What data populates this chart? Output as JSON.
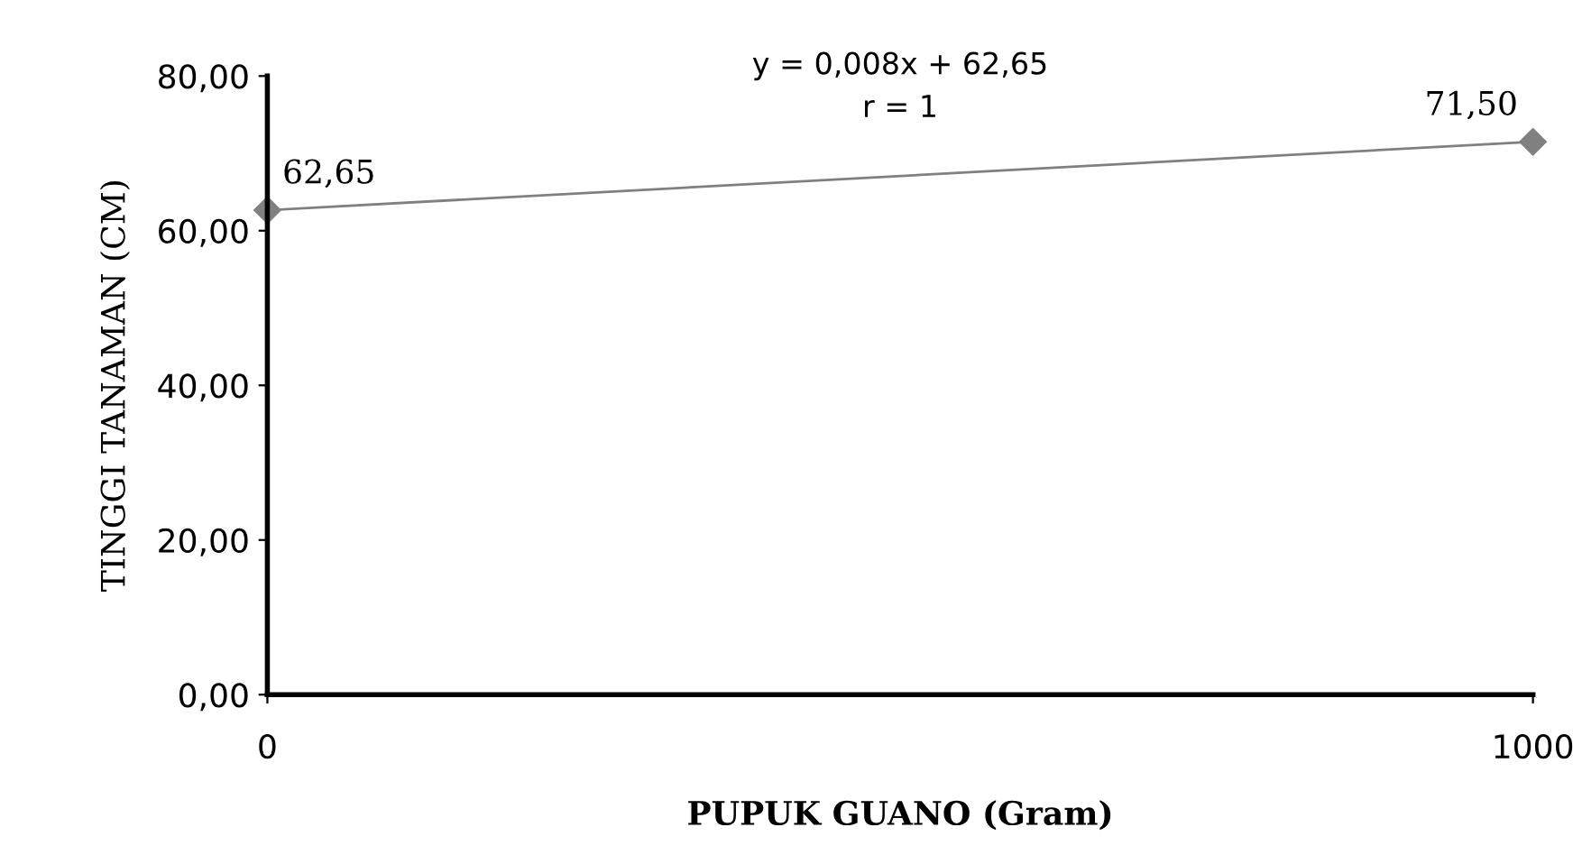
{
  "chart_data": {
    "type": "line",
    "xlabel": "PUPUK GUANO (Gram)",
    "ylabel": "TINGGI TANAMAN (CM)",
    "x": [
      0,
      1000
    ],
    "series": [
      {
        "color": "#808080",
        "values": [
          62.65,
          71.5
        ],
        "value_labels": [
          "62,65",
          "71,50"
        ]
      }
    ],
    "xlim": [
      0,
      1000
    ],
    "xticks": [
      0,
      1000
    ],
    "ylim": [
      0,
      80
    ],
    "yticks": [
      {
        "value": 0,
        "label": "0,00"
      },
      {
        "value": 20,
        "label": "20,00"
      },
      {
        "value": 40,
        "label": "40,00"
      },
      {
        "value": 60,
        "label": "60,00"
      },
      {
        "value": 80,
        "label": "80,00"
      }
    ],
    "annotations": [
      "y = 0,008x + 62,65\nr = 1"
    ],
    "marker": "diamond",
    "line_style": "solid",
    "grid": false,
    "legend": false
  }
}
